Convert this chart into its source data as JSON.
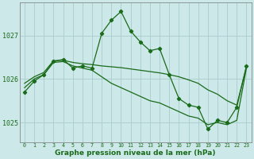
{
  "x": [
    0,
    1,
    2,
    3,
    4,
    5,
    6,
    7,
    8,
    9,
    10,
    11,
    12,
    13,
    14,
    15,
    16,
    17,
    18,
    19,
    20,
    21,
    22,
    23
  ],
  "y_line1": [
    1025.7,
    1025.95,
    1026.1,
    1026.4,
    1026.45,
    1026.25,
    1026.3,
    1026.25,
    1027.05,
    1027.35,
    1027.55,
    1027.1,
    1026.85,
    1026.65,
    1026.7,
    1026.1,
    1025.55,
    1025.4,
    1025.35,
    1024.85,
    1025.05,
    1025.0,
    1025.35,
    1026.3
  ],
  "y_line2": [
    1025.9,
    1026.05,
    1026.15,
    1026.42,
    1026.43,
    1026.38,
    1026.35,
    1026.33,
    1026.3,
    1026.28,
    1026.26,
    1026.23,
    1026.2,
    1026.17,
    1026.14,
    1026.1,
    1026.05,
    1025.98,
    1025.9,
    1025.75,
    1025.65,
    1025.5,
    1025.4,
    1026.28
  ],
  "y_line3": [
    1025.8,
    1026.0,
    1026.1,
    1026.38,
    1026.4,
    1026.3,
    1026.25,
    1026.2,
    1026.05,
    1025.9,
    1025.8,
    1025.7,
    1025.6,
    1025.5,
    1025.45,
    1025.35,
    1025.25,
    1025.15,
    1025.1,
    1024.95,
    1025.0,
    1024.95,
    1025.05,
    1026.25
  ],
  "line_color": "#1a6b1a",
  "bg_color": "#cce8e8",
  "grid_color": "#aacccc",
  "tick_label_color": "#1a6b1a",
  "xlabel": "Graphe pression niveau de la mer (hPa)",
  "yticks": [
    1025,
    1026,
    1027
  ],
  "xticks": [
    0,
    1,
    2,
    3,
    4,
    5,
    6,
    7,
    8,
    9,
    10,
    11,
    12,
    13,
    14,
    15,
    16,
    17,
    18,
    19,
    20,
    21,
    22,
    23
  ],
  "ylim": [
    1024.55,
    1027.75
  ],
  "xlim": [
    -0.5,
    23.5
  ],
  "marker": "D",
  "markersize": 2.2,
  "linewidth": 0.9
}
